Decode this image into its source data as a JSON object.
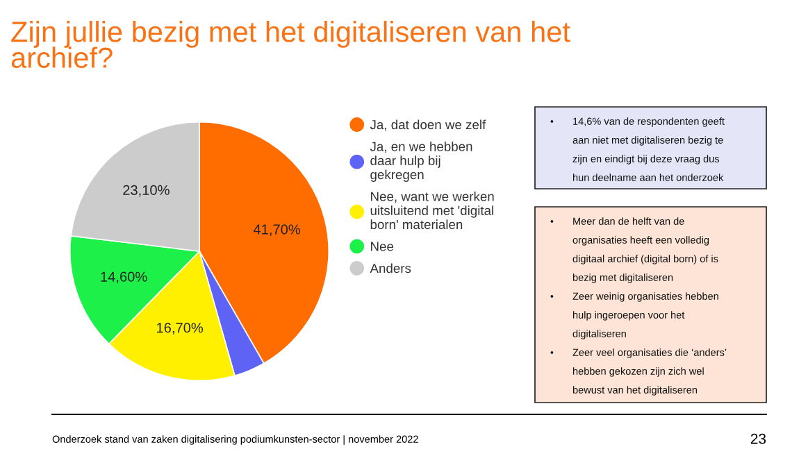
{
  "chart_data": {
    "type": "pie",
    "title": "Zijn jullie bezig met het digitaliseren van het\narchief?",
    "categories": [
      "Ja, dat doen we zelf",
      "Ja, en we hebben\ndaar hulp bij\ngekregen",
      "Nee, want we werken\nuitsluitend met 'digital\nborn' materialen",
      "Nee",
      "Anders"
    ],
    "values": [
      41.7,
      3.9,
      16.7,
      14.6,
      23.1
    ],
    "value_labels": [
      "41,70%",
      null,
      "16,70%",
      "14,60%",
      "23,10%"
    ],
    "colors": [
      "#ff6d01",
      "#5f63f5",
      "#fff000",
      "#1ef04a",
      "#cccccc"
    ],
    "legend": "right",
    "annotations": [
      "• 14,6% van de respondenten geeft\naan niet met digitaliseren bezig te\nzijn en eindigt bij deze vraag dus\nhun deelname aan het onderzoek",
      "• Meer dan de helft van de\norganisaties heeft een volledig\ndigitaal archief (digital born) of is\nbezig met digitaliseren\n• Zeer weinig organisaties hebben\nhulp ingeroepen voor het\ndigitaliseren\n• Zeer veel organisaties die ‘anders’\nhebben gekozen zijn zich wel\nbewust van het digitaliseren",
      "Onderzoek stand van zaken digitalisering podiumkunsten-sector | november 2022",
      "23"
    ]
  }
}
